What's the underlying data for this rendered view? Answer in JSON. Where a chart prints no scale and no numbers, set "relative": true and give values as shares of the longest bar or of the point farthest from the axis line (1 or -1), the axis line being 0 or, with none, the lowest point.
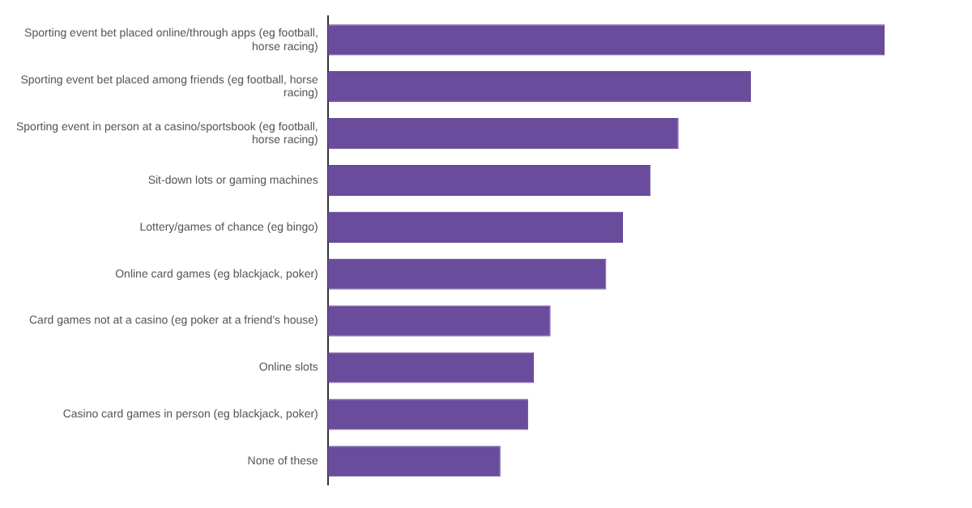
{
  "chart_data": {
    "type": "bar",
    "orientation": "horizontal",
    "relative": true,
    "categories": [
      "Sporting event bet placed online/through apps (eg football, horse racing)",
      "Sporting event bet placed among friends (eg football, horse racing)",
      "Sporting event in person at a casino/sportsbook (eg football, horse racing)",
      "Sit-down lots or gaming machines",
      "Lottery/games of chance (eg bingo)",
      "Online card games (eg blackjack, poker)",
      "Card games not at a casino (eg poker at a friend's house)",
      "Online slots",
      "Casino card games in person (eg blackjack, poker)",
      "None of these"
    ],
    "values": [
      1,
      0.76,
      0.63,
      0.58,
      0.53,
      0.5,
      0.4,
      0.37,
      0.36,
      0.31
    ],
    "color": "#6a4c9c"
  }
}
